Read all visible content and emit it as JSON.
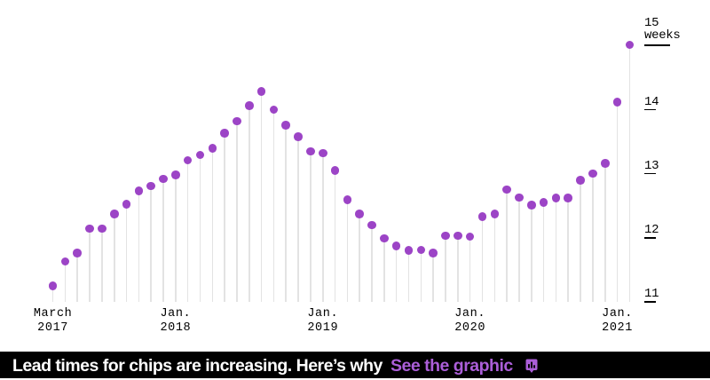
{
  "chart_data": {
    "type": "lollipop",
    "description": "Chip order lead times in weeks, monthly from March 2017 to February 2021",
    "unit": "weeks",
    "ylim": [
      11,
      15
    ],
    "y_axis_side": "right",
    "grid": false,
    "dot_color": "#9c44c6",
    "stem_color": "#e3e3e3",
    "x": [
      "March 2017",
      "April 2017",
      "May 2017",
      "June 2017",
      "July 2017",
      "Aug. 2017",
      "Sept. 2017",
      "Oct. 2017",
      "Nov. 2017",
      "Dec. 2017",
      "Jan. 2018",
      "Feb. 2018",
      "March 2018",
      "April 2018",
      "May 2018",
      "June 2018",
      "July 2018",
      "Aug. 2018",
      "Sept. 2018",
      "Oct. 2018",
      "Nov. 2018",
      "Dec. 2018",
      "Jan. 2019",
      "Feb. 2019",
      "March 2019",
      "April 2019",
      "May 2019",
      "June 2019",
      "July 2019",
      "Aug. 2019",
      "Sept. 2019",
      "Oct. 2019",
      "Nov. 2019",
      "Dec. 2019",
      "Jan. 2020",
      "Feb. 2020",
      "March 2020",
      "April 2020",
      "May 2020",
      "June 2020",
      "July 2020",
      "Aug. 2020",
      "Sept. 2020",
      "Oct. 2020",
      "Nov. 2020",
      "Dec. 2020",
      "Jan. 2021",
      "Feb. 2021"
    ],
    "values": [
      11.25,
      11.63,
      11.76,
      12.14,
      12.14,
      12.37,
      12.52,
      12.73,
      12.81,
      12.92,
      12.98,
      13.21,
      13.29,
      13.4,
      13.63,
      13.82,
      14.06,
      14.28,
      14.0,
      13.76,
      13.58,
      13.35,
      13.32,
      13.05,
      12.59,
      12.37,
      12.2,
      11.99,
      11.87,
      11.8,
      11.81,
      11.76,
      12.03,
      12.03,
      12.02,
      12.33,
      12.37,
      12.75,
      12.63,
      12.51,
      12.55,
      12.62,
      12.62,
      12.9,
      13.0,
      13.16,
      14.12,
      15.01
    ],
    "x_ticks": [
      {
        "month_index": 0,
        "line1": "March",
        "line2": "2017"
      },
      {
        "month_index": 10,
        "line1": "Jan.",
        "line2": "2018"
      },
      {
        "month_index": 22,
        "line1": "Jan.",
        "line2": "2019"
      },
      {
        "month_index": 34,
        "line1": "Jan.",
        "line2": "2020"
      },
      {
        "month_index": 46,
        "line1": "Jan.",
        "line2": "2021"
      }
    ],
    "y_ticks": [
      {
        "value": 15,
        "lines": [
          "15",
          "weeks"
        ],
        "tick_width": 29
      },
      {
        "value": 14,
        "lines": [
          "14"
        ],
        "tick_width": 13
      },
      {
        "value": 13,
        "lines": [
          "13"
        ],
        "tick_width": 13
      },
      {
        "value": 12,
        "lines": [
          "12"
        ],
        "tick_width": 13
      },
      {
        "value": 11,
        "lines": [
          "11"
        ],
        "tick_width": 13
      }
    ]
  },
  "banner": {
    "background": "#000000",
    "headline": "Lead times for chips are increasing. Here’s why",
    "headline_color": "#ffffff",
    "cta_label": "See the graphic",
    "cta_color": "#ab5ed8",
    "icon": "bar-chart-bubble-icon",
    "icon_color": "#ab5ed8"
  }
}
